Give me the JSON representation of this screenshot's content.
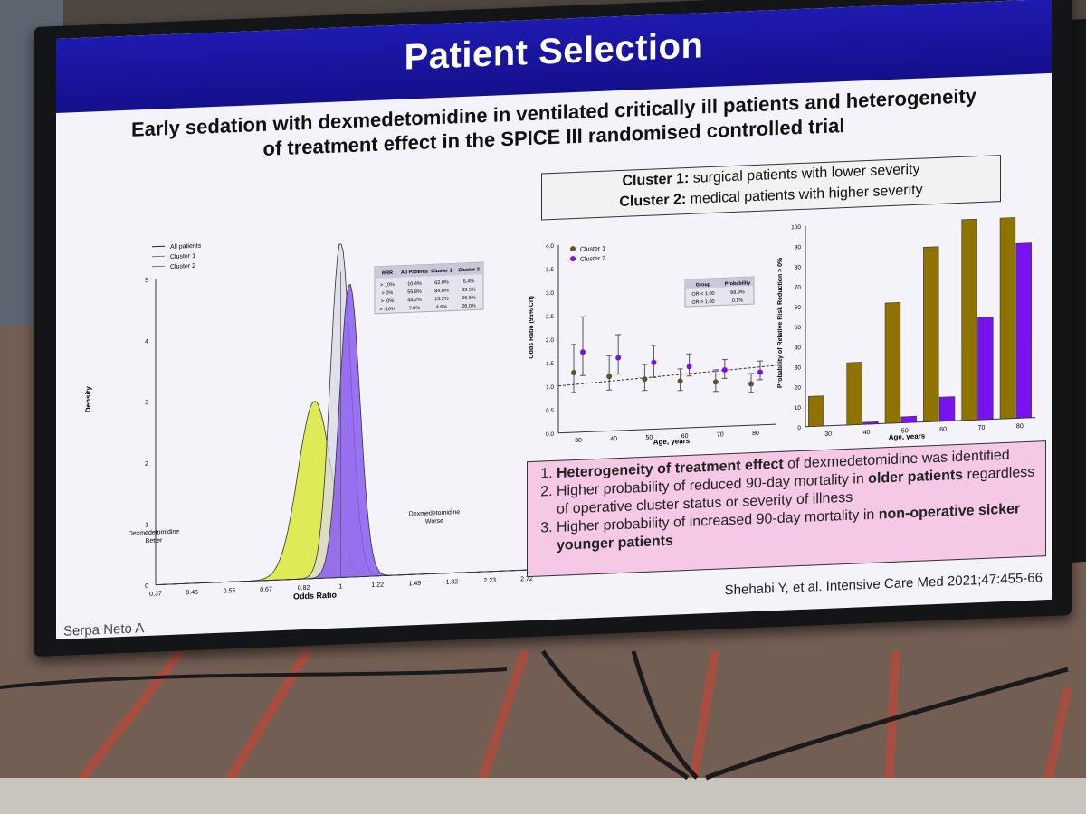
{
  "slide": {
    "title": "Patient Selection",
    "subtitle_line1": "Early sedation with dexmedetomidine in ventilated critically ill patients and heterogeneity",
    "subtitle_line2": "of treatment effect in the SPICE III randomised controlled trial",
    "cluster1_label": "Cluster 1:",
    "cluster1_text": " surgical patients with lower severity",
    "cluster2_label": "Cluster 2:",
    "cluster2_text": " medical patients with higher severity",
    "citation": "Shehabi Y, et al. Intensive Care Med 2021;47:455-66",
    "author": "Serpa Neto A"
  },
  "conclusions": {
    "item1_bold": "Heterogeneity of treatment effect",
    "item1_rest": " of dexmedetomidine was identified",
    "item2_a": "Higher probability of reduced 90-day mortality in ",
    "item2_bold": "older patients",
    "item2_b": " regardless of operative cluster status or severity of illness",
    "item3_a": "Higher probability of increased 90-day mortality in ",
    "item3_bold": "non-operative sicker younger patients"
  },
  "density_chart": {
    "xlabel": "Odds Ratio",
    "ylabel": "Density",
    "yticks": [
      "0",
      "1",
      "2",
      "3",
      "4",
      "5"
    ],
    "xticks": [
      "0.37",
      "0.45",
      "0.55",
      "0.67",
      "0.82",
      "1",
      "1.22",
      "1.49",
      "1.82",
      "2.23",
      "2.72"
    ],
    "legend": [
      "All patients",
      "Cluster 1",
      "Cluster 2"
    ],
    "annotation_left_1": "Dexmedetomidine",
    "annotation_left_2": "Better",
    "annotation_right_1": "Dexmedetomidine",
    "annotation_right_2": "Worse",
    "colors": {
      "all": "#d9d9e6",
      "cluster1": "#dbe83a",
      "cluster2": "#8a5cf0"
    },
    "table_header": [
      "RRR",
      "All Patients",
      "Cluster 1",
      "Cluster 2"
    ],
    "table_rows": [
      [
        "> 10%",
        "10.4%",
        "62.0%",
        "5.4%"
      ],
      [
        "> 0%",
        "55.8%",
        "84.8%",
        "33.5%"
      ],
      [
        "> -0%",
        "44.2%",
        "15.2%",
        "66.5%"
      ],
      [
        "> -10%",
        "7.8%",
        "4.6%",
        "26.0%"
      ]
    ]
  },
  "or_chart": {
    "ylabel": "Odds Ratio (95% CrI)",
    "xlabel": "Age, years",
    "yticks": [
      "0.0",
      "0.5",
      "1.0",
      "1.5",
      "2.0",
      "2.5",
      "3.0",
      "3.5",
      "4.0"
    ],
    "xticks": [
      "30",
      "40",
      "50",
      "60",
      "70",
      "80"
    ],
    "legend": [
      "Cluster 1",
      "Cluster 2"
    ],
    "table_header": [
      "Group",
      "Probability"
    ],
    "table_rows": [
      [
        "OR < 1.00",
        "99.9%"
      ],
      [
        "OR > 1.00",
        "0.1%"
      ]
    ],
    "colors": {
      "cluster1": "#5e5230",
      "cluster2": "#7a12e8"
    }
  },
  "prob_chart": {
    "ylabel": "Probability of Relative Risk Reduction > 0%",
    "xlabel": "Age, years",
    "yticks": [
      "0",
      "10",
      "20",
      "30",
      "40",
      "50",
      "60",
      "70",
      "80",
      "90",
      "100"
    ],
    "xticks": [
      "30",
      "40",
      "50",
      "60",
      "70",
      "80"
    ],
    "colors": {
      "cluster1": "#8f7300",
      "cluster2": "#7a12f0"
    }
  },
  "chart_data": [
    {
      "type": "line",
      "title": "",
      "xlabel": "Odds Ratio",
      "ylabel": "Density",
      "xscale": "log",
      "ylim": [
        0,
        5
      ],
      "series": [
        {
          "name": "All patients",
          "mode": 1.0,
          "peak": 5.5
        },
        {
          "name": "Cluster 1",
          "mode": 0.87,
          "peak": 2.9
        },
        {
          "name": "Cluster 2",
          "mode": 1.05,
          "peak": 4.8
        }
      ]
    },
    {
      "type": "scatter",
      "title": "",
      "xlabel": "Age, years",
      "ylabel": "Odds Ratio (95% CrI)",
      "ylim": [
        0,
        4
      ],
      "series": [
        {
          "name": "Cluster 1",
          "points": [
            {
              "x": 30,
              "y": 1.27,
              "lo": 0.85,
              "hi": 1.87
            },
            {
              "x": 40,
              "y": 1.16,
              "lo": 0.87,
              "hi": 1.6
            },
            {
              "x": 50,
              "y": 1.07,
              "lo": 0.83,
              "hi": 1.38
            },
            {
              "x": 60,
              "y": 1.0,
              "lo": 0.8,
              "hi": 1.26
            },
            {
              "x": 70,
              "y": 0.95,
              "lo": 0.75,
              "hi": 1.21
            },
            {
              "x": 80,
              "y": 0.88,
              "lo": 0.7,
              "hi": 1.1
            }
          ]
        },
        {
          "name": "Cluster 2",
          "points": [
            {
              "x": 30,
              "y": 1.7,
              "lo": 1.2,
              "hi": 2.45
            },
            {
              "x": 40,
              "y": 1.55,
              "lo": 1.2,
              "hi": 2.04
            },
            {
              "x": 50,
              "y": 1.42,
              "lo": 1.1,
              "hi": 1.78
            },
            {
              "x": 60,
              "y": 1.3,
              "lo": 1.1,
              "hi": 1.57
            },
            {
              "x": 70,
              "y": 1.2,
              "lo": 1.02,
              "hi": 1.42
            },
            {
              "x": 80,
              "y": 1.12,
              "lo": 0.96,
              "hi": 1.36
            }
          ]
        }
      ]
    },
    {
      "type": "bar",
      "title": "",
      "xlabel": "Age, years",
      "ylabel": "Probability of Relative Risk Reduction > 0%",
      "ylim": [
        0,
        100
      ],
      "categories": [
        "30",
        "40",
        "50",
        "60",
        "70",
        "80"
      ],
      "series": [
        {
          "name": "Cluster 1",
          "values": [
            15,
            31,
            60,
            87,
            100,
            100
          ]
        },
        {
          "name": "Cluster 2",
          "values": [
            0,
            1,
            3,
            12,
            51,
            87
          ]
        }
      ]
    }
  ]
}
